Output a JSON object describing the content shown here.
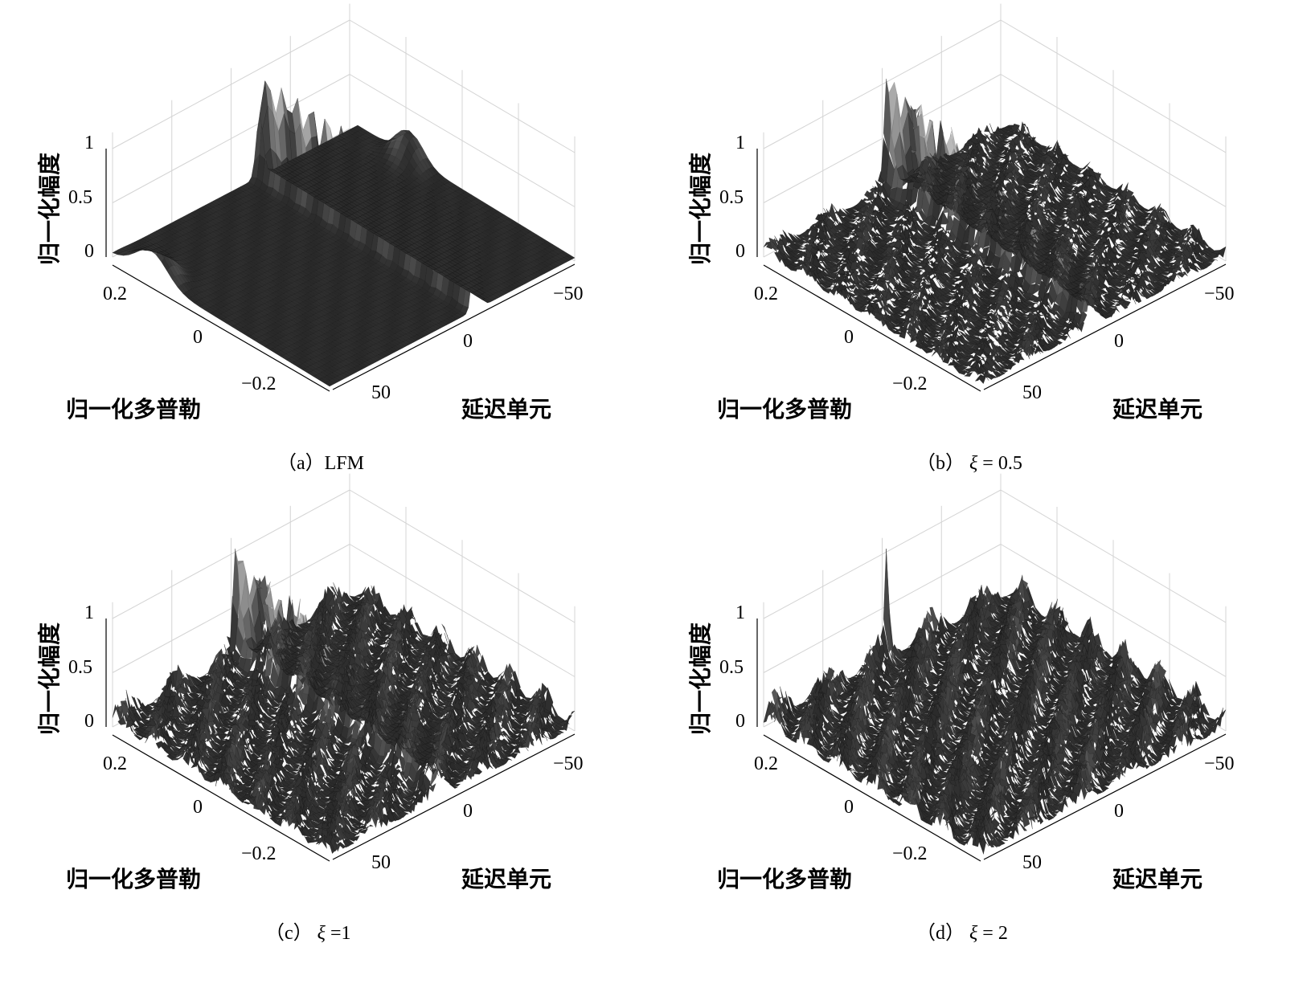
{
  "chart_data": [
    {
      "type": "surface3d",
      "caption": "（a）LFM",
      "zlabel": "归一化幅度",
      "xlabel": "归一化多普勒",
      "ylabel": "延迟单元",
      "zticks": [
        "1",
        "0.5",
        "0"
      ],
      "doppler_ticks": [
        "0.2",
        "0",
        "−0.2"
      ],
      "delay_ticks": [
        "−50",
        "0",
        "50"
      ],
      "zlim": [
        0,
        1
      ],
      "doppler_range": [
        -0.3,
        0.3
      ],
      "delay_range": [
        -64,
        64
      ],
      "features": {
        "ridge_peak": 1.0,
        "ridge_type": "diagonal LFM ridge",
        "edge_peaks": 0.3
      },
      "grid": true
    },
    {
      "type": "surface3d",
      "caption_prefix": "（b）",
      "caption_symbol": "ξ",
      "caption_value": "= 0.5",
      "zlabel": "归一化幅度",
      "xlabel": "归一化多普勒",
      "ylabel": "延迟单元",
      "zticks": [
        "1",
        "0.5",
        "0"
      ],
      "doppler_ticks": [
        "0.2",
        "0",
        "−0.2"
      ],
      "delay_ticks": [
        "−50",
        "0",
        "50"
      ],
      "zlim": [
        0,
        1
      ],
      "features": {
        "ridge_peak": 1.0,
        "center_peak": 1.0,
        "sidelobe_level": 0.15
      },
      "grid": true
    },
    {
      "type": "surface3d",
      "caption_prefix": "（c）",
      "caption_symbol": "ξ",
      "caption_value": "=1",
      "zlabel": "归一化幅度",
      "xlabel": "归一化多普勒",
      "ylabel": "延迟单元",
      "zticks": [
        "1",
        "0.5",
        "0"
      ],
      "doppler_ticks": [
        "0.2",
        "0",
        "−0.2"
      ],
      "delay_ticks": [
        "−50",
        "0",
        "50"
      ],
      "zlim": [
        0,
        1
      ],
      "features": {
        "ridge_peak": 0.9,
        "center_peak": 1.0,
        "sidelobe_level": 0.25
      },
      "grid": true
    },
    {
      "type": "surface3d",
      "caption_prefix": "（d）",
      "caption_symbol": "ξ",
      "caption_value": "= 2",
      "zlabel": "归一化幅度",
      "xlabel": "归一化多普勒",
      "ylabel": "延迟单元",
      "zticks": [
        "1",
        "0.5",
        "0"
      ],
      "doppler_ticks": [
        "0.2",
        "0",
        "−0.2"
      ],
      "delay_ticks": [
        "−50",
        "0",
        "50"
      ],
      "zlim": [
        0,
        1
      ],
      "features": {
        "ridge_peak": 0.0,
        "center_peak": 1.0,
        "sidelobe_level": 0.3
      },
      "grid": true
    }
  ]
}
